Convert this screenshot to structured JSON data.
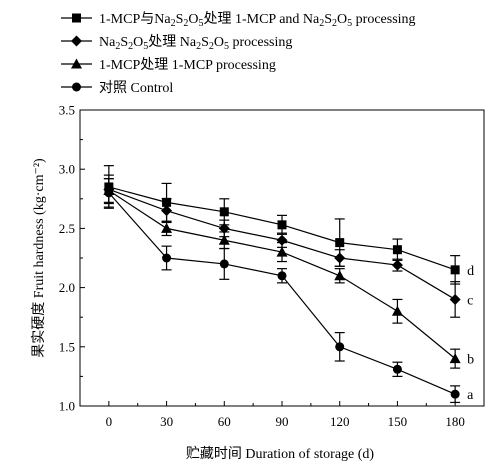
{
  "chart_data": {
    "type": "line",
    "title": "",
    "xlabel": "贮藏时间 Duration of storage (d)",
    "ylabel": "果实硬度 Fruit hardness (kg·cm⁻²)",
    "x": [
      0,
      30,
      60,
      90,
      120,
      150,
      180
    ],
    "x_ticks": [
      "0",
      "30",
      "60",
      "90",
      "120",
      "150",
      "180"
    ],
    "y_ticks": [
      "1.0",
      "1.5",
      "2.0",
      "2.5",
      "3.0",
      "3.5"
    ],
    "xlim": [
      -15,
      195
    ],
    "ylim": [
      1.0,
      3.5
    ],
    "grid": false,
    "legend_position": "top-left",
    "series": [
      {
        "name": "1-MCP与Na2S2O5处理 1-MCP and Na2S2O5 processing",
        "legend_parts": [
          {
            "t": "1-MCP与Na"
          },
          {
            "t": "2",
            "sub": true
          },
          {
            "t": "S"
          },
          {
            "t": "2",
            "sub": true
          },
          {
            "t": "O"
          },
          {
            "t": "5",
            "sub": true
          },
          {
            "t": "处理 1-MCP and Na"
          },
          {
            "t": "2",
            "sub": true
          },
          {
            "t": "S"
          },
          {
            "t": "2",
            "sub": true
          },
          {
            "t": "O"
          },
          {
            "t": "5",
            "sub": true
          },
          {
            "t": " processing"
          }
        ],
        "marker": "square",
        "values": [
          2.85,
          2.72,
          2.64,
          2.53,
          2.38,
          2.32,
          2.15
        ],
        "errors": [
          0.18,
          0.16,
          0.11,
          0.08,
          0.2,
          0.09,
          0.12
        ],
        "label": "d"
      },
      {
        "name": "Na2S2O5处理 Na2S2O5 processing",
        "legend_parts": [
          {
            "t": "Na"
          },
          {
            "t": "2",
            "sub": true
          },
          {
            "t": "S"
          },
          {
            "t": "2",
            "sub": true
          },
          {
            "t": "O"
          },
          {
            "t": "5",
            "sub": true
          },
          {
            "t": "处理 Na"
          },
          {
            "t": "2",
            "sub": true
          },
          {
            "t": "S"
          },
          {
            "t": "2",
            "sub": true
          },
          {
            "t": "O"
          },
          {
            "t": "5",
            "sub": true
          },
          {
            "t": " processing"
          }
        ],
        "marker": "diamond",
        "values": [
          2.83,
          2.65,
          2.5,
          2.4,
          2.25,
          2.19,
          1.9
        ],
        "errors": [
          0.12,
          0.1,
          0.07,
          0.06,
          0.07,
          0.05,
          0.15
        ],
        "label": "c"
      },
      {
        "name": "1-MCP处理 1-MCP processing",
        "legend_parts": [
          {
            "t": "1-MCP处理 1-MCP processing"
          }
        ],
        "marker": "triangle",
        "values": [
          2.82,
          2.5,
          2.4,
          2.3,
          2.1,
          1.8,
          1.4
        ],
        "errors": [
          0.1,
          0.06,
          0.07,
          0.08,
          0.06,
          0.1,
          0.08
        ],
        "label": "b"
      },
      {
        "name": "对照 Control",
        "legend_parts": [
          {
            "t": "对照 Control"
          }
        ],
        "marker": "circle",
        "values": [
          2.8,
          2.25,
          2.2,
          2.1,
          1.5,
          1.31,
          1.1
        ],
        "errors": [
          0.12,
          0.1,
          0.13,
          0.06,
          0.12,
          0.06,
          0.07
        ],
        "label": "a"
      }
    ]
  }
}
